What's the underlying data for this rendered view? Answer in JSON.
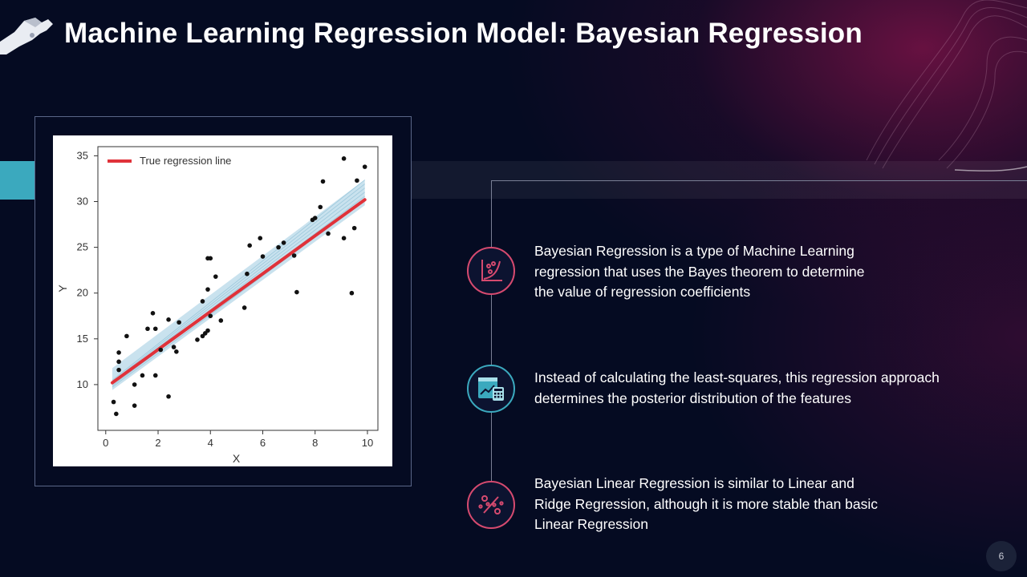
{
  "title": "Machine Learning Regression Model: Bayesian Regression",
  "colors": {
    "background": "#050b22",
    "accent_teal": "#3ba9be",
    "accent_pink": "#d64a6f",
    "regression_line": "#e0323a",
    "uncertainty_band": "#9ccbe0"
  },
  "bullets": [
    {
      "icon": "scatter-plot-icon",
      "text": "Bayesian Regression  is a type of Machine Learning\nregression  that uses the Bayes theorem to determine\nthe value of regression  coefficients"
    },
    {
      "icon": "analytics-calculator-icon",
      "text": "Instead of calculating the least-squares,  this regression  approach\ndetermines  the posterior distribution of the features"
    },
    {
      "icon": "percent-icon",
      "text": "Bayesian Linear Regression  is similar to Linear and\nRidge Regression,  although it is more stable than basic\nLinear Regression"
    }
  ],
  "page_number": "6",
  "chart_data": {
    "type": "scatter",
    "xlabel": "X",
    "ylabel": "Y",
    "xlim": [
      -0.3,
      10.4
    ],
    "ylim": [
      5,
      36
    ],
    "xticks": [
      0,
      2,
      4,
      6,
      8,
      10
    ],
    "yticks": [
      10,
      15,
      20,
      25,
      30,
      35
    ],
    "legend": {
      "label": "True regression line",
      "placement": "top-left"
    },
    "regression_line": {
      "x": [
        0.25,
        9.9
      ],
      "y": [
        10.2,
        30.2
      ]
    },
    "posterior_band": {
      "x": [
        0.25,
        9.9
      ],
      "y_low": [
        9.4,
        29.6
      ],
      "y_high": [
        11.8,
        32.4
      ]
    },
    "points": [
      [
        0.3,
        8.1
      ],
      [
        0.4,
        6.8
      ],
      [
        0.5,
        12.5
      ],
      [
        0.5,
        13.5
      ],
      [
        0.5,
        11.6
      ],
      [
        0.8,
        15.3
      ],
      [
        1.1,
        7.7
      ],
      [
        1.1,
        10.0
      ],
      [
        1.4,
        11.0
      ],
      [
        1.6,
        16.1
      ],
      [
        1.8,
        17.8
      ],
      [
        1.9,
        16.1
      ],
      [
        1.9,
        11.0
      ],
      [
        2.1,
        13.8
      ],
      [
        2.4,
        17.1
      ],
      [
        2.4,
        8.7
      ],
      [
        2.6,
        14.1
      ],
      [
        2.7,
        13.6
      ],
      [
        2.8,
        16.8
      ],
      [
        3.5,
        14.9
      ],
      [
        3.7,
        15.3
      ],
      [
        3.7,
        19.1
      ],
      [
        3.8,
        15.6
      ],
      [
        3.9,
        15.9
      ],
      [
        3.9,
        20.4
      ],
      [
        3.9,
        23.8
      ],
      [
        4.0,
        17.5
      ],
      [
        4.0,
        23.8
      ],
      [
        4.2,
        21.8
      ],
      [
        4.4,
        17.0
      ],
      [
        5.3,
        18.4
      ],
      [
        5.4,
        22.1
      ],
      [
        5.5,
        25.2
      ],
      [
        5.9,
        26.0
      ],
      [
        6.0,
        24.0
      ],
      [
        6.6,
        25.0
      ],
      [
        6.8,
        25.5
      ],
      [
        7.2,
        24.1
      ],
      [
        7.3,
        20.1
      ],
      [
        7.9,
        28.0
      ],
      [
        8.0,
        28.2
      ],
      [
        8.2,
        29.4
      ],
      [
        8.3,
        32.2
      ],
      [
        8.5,
        26.5
      ],
      [
        9.1,
        34.7
      ],
      [
        9.1,
        26.0
      ],
      [
        9.4,
        20.0
      ],
      [
        9.5,
        27.1
      ],
      [
        9.6,
        32.3
      ],
      [
        9.9,
        33.8
      ]
    ]
  }
}
